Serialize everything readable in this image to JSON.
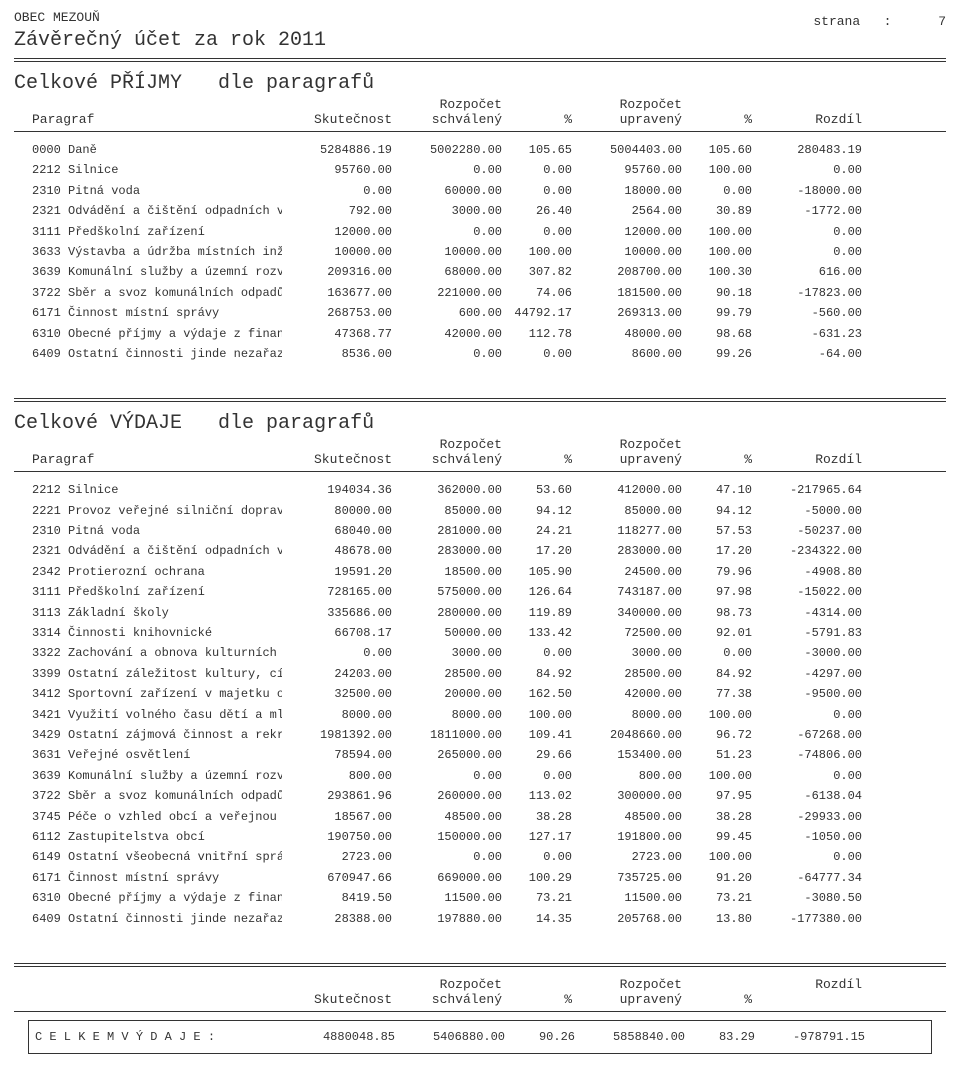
{
  "org": "OBEC MEZOUŇ",
  "title": "Závěrečný účet za rok 2011",
  "page_label": "strana",
  "page_sep": ":",
  "page_num": "7",
  "labels": {
    "paragraf": "Paragraf",
    "skutecnost": "Skutečnost",
    "rozpocet": "Rozpočet",
    "schvaleny": "schválený",
    "upraveny": "upravený",
    "pct": "%",
    "rozdil": "Rozdíl"
  },
  "prijmy": {
    "heading_a": "Celkové PŘÍJMY",
    "heading_b": "dle paragrafů",
    "rows": [
      {
        "para": "0000 Daně",
        "skut": "5284886.19",
        "rozs": "5002280.00",
        "pct1": "105.65",
        "rozu": "5004403.00",
        "pct2": "105.60",
        "rozd": "280483.19"
      },
      {
        "para": "2212 Silnice",
        "skut": "95760.00",
        "rozs": "0.00",
        "pct1": "0.00",
        "rozu": "95760.00",
        "pct2": "100.00",
        "rozd": "0.00"
      },
      {
        "para": "2310 Pitná voda",
        "skut": "0.00",
        "rozs": "60000.00",
        "pct1": "0.00",
        "rozu": "18000.00",
        "pct2": "0.00",
        "rozd": "-18000.00"
      },
      {
        "para": "2321 Odvádění a čištění odpadních v",
        "skut": "792.00",
        "rozs": "3000.00",
        "pct1": "26.40",
        "rozu": "2564.00",
        "pct2": "30.89",
        "rozd": "-1772.00"
      },
      {
        "para": "3111 Předškolní zařízení",
        "skut": "12000.00",
        "rozs": "0.00",
        "pct1": "0.00",
        "rozu": "12000.00",
        "pct2": "100.00",
        "rozd": "0.00"
      },
      {
        "para": "3633 Výstavba a údržba místních inž",
        "skut": "10000.00",
        "rozs": "10000.00",
        "pct1": "100.00",
        "rozu": "10000.00",
        "pct2": "100.00",
        "rozd": "0.00"
      },
      {
        "para": "3639 Komunální služby a územní rozv",
        "skut": "209316.00",
        "rozs": "68000.00",
        "pct1": "307.82",
        "rozu": "208700.00",
        "pct2": "100.30",
        "rozd": "616.00"
      },
      {
        "para": "3722 Sběr a svoz komunálních odpadů",
        "skut": "163677.00",
        "rozs": "221000.00",
        "pct1": "74.06",
        "rozu": "181500.00",
        "pct2": "90.18",
        "rozd": "-17823.00"
      },
      {
        "para": "6171 Činnost místní správy",
        "skut": "268753.00",
        "rozs": "600.00",
        "pct1": "44792.17",
        "rozu": "269313.00",
        "pct2": "99.79",
        "rozd": "-560.00"
      },
      {
        "para": "6310 Obecné příjmy a výdaje z finan",
        "skut": "47368.77",
        "rozs": "42000.00",
        "pct1": "112.78",
        "rozu": "48000.00",
        "pct2": "98.68",
        "rozd": "-631.23"
      },
      {
        "para": "6409 Ostatní činnosti jinde nezařaz",
        "skut": "8536.00",
        "rozs": "0.00",
        "pct1": "0.00",
        "rozu": "8600.00",
        "pct2": "99.26",
        "rozd": "-64.00"
      }
    ]
  },
  "vydaje": {
    "heading_a": "Celkové VÝDAJE",
    "heading_b": "dle paragrafů",
    "rows": [
      {
        "para": "2212 Silnice",
        "skut": "194034.36",
        "rozs": "362000.00",
        "pct1": "53.60",
        "rozu": "412000.00",
        "pct2": "47.10",
        "rozd": "-217965.64"
      },
      {
        "para": "2221 Provoz veřejné silniční doprav",
        "skut": "80000.00",
        "rozs": "85000.00",
        "pct1": "94.12",
        "rozu": "85000.00",
        "pct2": "94.12",
        "rozd": "-5000.00"
      },
      {
        "para": "2310 Pitná voda",
        "skut": "68040.00",
        "rozs": "281000.00",
        "pct1": "24.21",
        "rozu": "118277.00",
        "pct2": "57.53",
        "rozd": "-50237.00"
      },
      {
        "para": "2321 Odvádění a čištění odpadních v",
        "skut": "48678.00",
        "rozs": "283000.00",
        "pct1": "17.20",
        "rozu": "283000.00",
        "pct2": "17.20",
        "rozd": "-234322.00"
      },
      {
        "para": "2342 Protierozní ochrana",
        "skut": "19591.20",
        "rozs": "18500.00",
        "pct1": "105.90",
        "rozu": "24500.00",
        "pct2": "79.96",
        "rozd": "-4908.80"
      },
      {
        "para": "3111 Předškolní zařízení",
        "skut": "728165.00",
        "rozs": "575000.00",
        "pct1": "126.64",
        "rozu": "743187.00",
        "pct2": "97.98",
        "rozd": "-15022.00"
      },
      {
        "para": "3113 Základní školy",
        "skut": "335686.00",
        "rozs": "280000.00",
        "pct1": "119.89",
        "rozu": "340000.00",
        "pct2": "98.73",
        "rozd": "-4314.00"
      },
      {
        "para": "3314 Činnosti knihovnické",
        "skut": "66708.17",
        "rozs": "50000.00",
        "pct1": "133.42",
        "rozu": "72500.00",
        "pct2": "92.01",
        "rozd": "-5791.83"
      },
      {
        "para": "3322 Zachování a obnova kulturních",
        "skut": "0.00",
        "rozs": "3000.00",
        "pct1": "0.00",
        "rozu": "3000.00",
        "pct2": "0.00",
        "rozd": "-3000.00"
      },
      {
        "para": "3399 Ostatní záležitost kultury, cí",
        "skut": "24203.00",
        "rozs": "28500.00",
        "pct1": "84.92",
        "rozu": "28500.00",
        "pct2": "84.92",
        "rozd": "-4297.00"
      },
      {
        "para": "3412 Sportovní zařízení v majetku o",
        "skut": "32500.00",
        "rozs": "20000.00",
        "pct1": "162.50",
        "rozu": "42000.00",
        "pct2": "77.38",
        "rozd": "-9500.00"
      },
      {
        "para": "3421 Využití volného času dětí a ml",
        "skut": "8000.00",
        "rozs": "8000.00",
        "pct1": "100.00",
        "rozu": "8000.00",
        "pct2": "100.00",
        "rozd": "0.00"
      },
      {
        "para": "3429 Ostatní zájmová činnost a rekr",
        "skut": "1981392.00",
        "rozs": "1811000.00",
        "pct1": "109.41",
        "rozu": "2048660.00",
        "pct2": "96.72",
        "rozd": "-67268.00"
      },
      {
        "para": "3631 Veřejné osvětlení",
        "skut": "78594.00",
        "rozs": "265000.00",
        "pct1": "29.66",
        "rozu": "153400.00",
        "pct2": "51.23",
        "rozd": "-74806.00"
      },
      {
        "para": "3639 Komunální služby a územní rozv",
        "skut": "800.00",
        "rozs": "0.00",
        "pct1": "0.00",
        "rozu": "800.00",
        "pct2": "100.00",
        "rozd": "0.00"
      },
      {
        "para": "3722 Sběr a svoz komunálních odpadů",
        "skut": "293861.96",
        "rozs": "260000.00",
        "pct1": "113.02",
        "rozu": "300000.00",
        "pct2": "97.95",
        "rozd": "-6138.04"
      },
      {
        "para": "3745 Péče o vzhled obcí a veřejnou",
        "skut": "18567.00",
        "rozs": "48500.00",
        "pct1": "38.28",
        "rozu": "48500.00",
        "pct2": "38.28",
        "rozd": "-29933.00"
      },
      {
        "para": "6112 Zastupitelstva obcí",
        "skut": "190750.00",
        "rozs": "150000.00",
        "pct1": "127.17",
        "rozu": "191800.00",
        "pct2": "99.45",
        "rozd": "-1050.00"
      },
      {
        "para": "6149 Ostatní všeobecná vnitřní sprá",
        "skut": "2723.00",
        "rozs": "0.00",
        "pct1": "0.00",
        "rozu": "2723.00",
        "pct2": "100.00",
        "rozd": "0.00"
      },
      {
        "para": "6171 Činnost místní správy",
        "skut": "670947.66",
        "rozs": "669000.00",
        "pct1": "100.29",
        "rozu": "735725.00",
        "pct2": "91.20",
        "rozd": "-64777.34"
      },
      {
        "para": "6310 Obecné příjmy a výdaje z finan",
        "skut": "8419.50",
        "rozs": "11500.00",
        "pct1": "73.21",
        "rozu": "11500.00",
        "pct2": "73.21",
        "rozd": "-3080.50"
      },
      {
        "para": "6409 Ostatní činnosti jinde nezařaz",
        "skut": "28388.00",
        "rozs": "197880.00",
        "pct1": "14.35",
        "rozu": "205768.00",
        "pct2": "13.80",
        "rozd": "-177380.00"
      }
    ]
  },
  "total": {
    "label": "C E L K E M   V Ý D A J E     :",
    "skut": "4880048.85",
    "rozs": "5406880.00",
    "pct1": "90.26",
    "rozu": "5858840.00",
    "pct2": "83.29",
    "rozd": "-978791.15"
  }
}
